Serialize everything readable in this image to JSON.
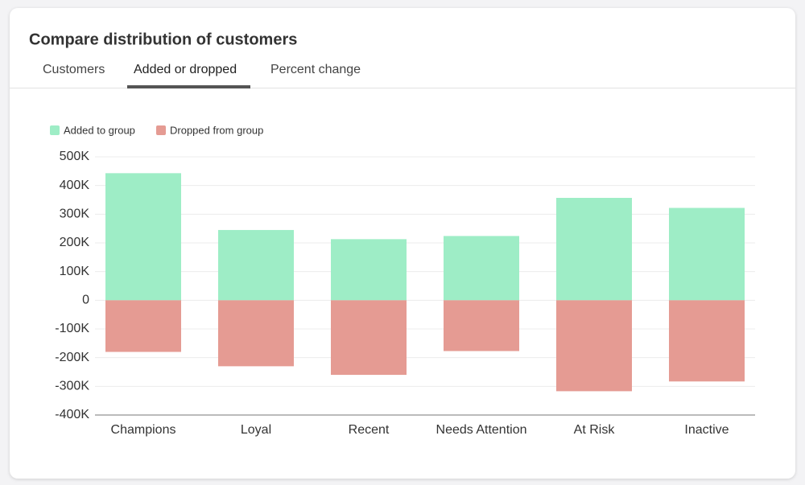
{
  "header": {
    "title": "Compare distribution of customers"
  },
  "tabs": [
    "Customers",
    "Added or dropped",
    "Percent change"
  ],
  "chart_data": {
    "type": "bar",
    "stacked": true,
    "categories": [
      "Champions",
      "Loyal",
      "Recent",
      "Needs Attention",
      "At Risk",
      "Inactive"
    ],
    "series": [
      {
        "name": "Added to group",
        "color": "#9eedc6",
        "values": [
          443000,
          245000,
          213000,
          224000,
          357000,
          322000
        ]
      },
      {
        "name": "Dropped from group",
        "color": "#e59b93",
        "values": [
          -180000,
          -230000,
          -260000,
          -177000,
          -317000,
          -283000
        ]
      }
    ],
    "ylim": [
      -400000,
      500000
    ],
    "yticks": [
      {
        "value": -400000,
        "label": "-400K"
      },
      {
        "value": -300000,
        "label": "-300K"
      },
      {
        "value": -200000,
        "label": "-200K"
      },
      {
        "value": -100000,
        "label": "-100K"
      },
      0,
      {
        "value": 100000,
        "label": "100K"
      },
      {
        "value": 200000,
        "label": "200K"
      },
      {
        "value": 300000,
        "label": "300K"
      },
      {
        "value": 400000,
        "label": "400K"
      },
      {
        "value": 500000,
        "label": "500K"
      }
    ],
    "grid": true,
    "legend": "top-left"
  }
}
